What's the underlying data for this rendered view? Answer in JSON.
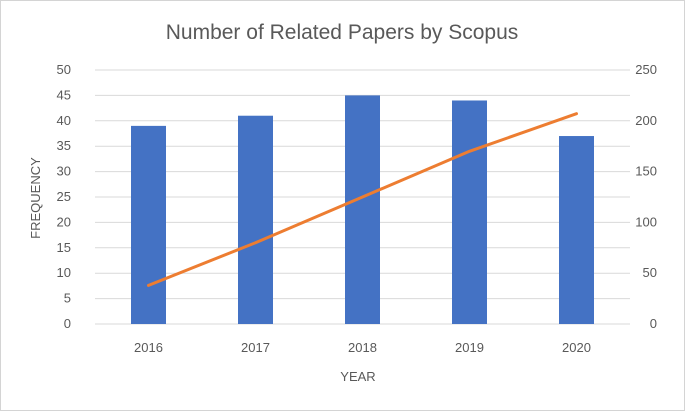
{
  "chart_data": {
    "type": "bar",
    "title": "Number of Related Papers by Scopus",
    "xlabel": "YEAR",
    "ylabel": "FREQUENCY",
    "categories": [
      "2016",
      "2017",
      "2018",
      "2019",
      "2020"
    ],
    "series": [
      {
        "type": "bar",
        "axis": "left",
        "color": "#4472c4",
        "values": [
          39,
          41,
          45,
          44,
          37
        ]
      },
      {
        "type": "line",
        "axis": "right",
        "color": "#ed7d31",
        "values": [
          38,
          80,
          125,
          170,
          207
        ]
      }
    ],
    "ylim": [
      0,
      50
    ],
    "y_ticks": [
      "0",
      "5",
      "10",
      "15",
      "20",
      "25",
      "30",
      "35",
      "40",
      "45",
      "50"
    ],
    "y2lim": [
      0,
      250
    ],
    "y2_ticks": [
      "0",
      "50",
      "100",
      "150",
      "200",
      "250"
    ],
    "grid": true,
    "legend": "none"
  }
}
